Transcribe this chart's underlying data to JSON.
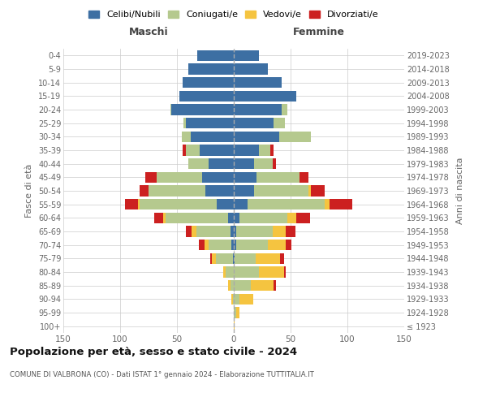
{
  "age_groups": [
    "100+",
    "95-99",
    "90-94",
    "85-89",
    "80-84",
    "75-79",
    "70-74",
    "65-69",
    "60-64",
    "55-59",
    "50-54",
    "45-49",
    "40-44",
    "35-39",
    "30-34",
    "25-29",
    "20-24",
    "15-19",
    "10-14",
    "5-9",
    "0-4"
  ],
  "birth_years": [
    "≤ 1923",
    "1924-1928",
    "1929-1933",
    "1934-1938",
    "1939-1943",
    "1944-1948",
    "1949-1953",
    "1954-1958",
    "1959-1963",
    "1964-1968",
    "1969-1973",
    "1974-1978",
    "1979-1983",
    "1984-1988",
    "1989-1993",
    "1994-1998",
    "1999-2003",
    "2004-2008",
    "2009-2013",
    "2014-2018",
    "2019-2023"
  ],
  "male": {
    "celibi": [
      0,
      0,
      0,
      0,
      0,
      1,
      2,
      3,
      5,
      15,
      25,
      28,
      22,
      30,
      38,
      42,
      55,
      48,
      45,
      40,
      32
    ],
    "coniugati": [
      0,
      0,
      1,
      3,
      7,
      15,
      20,
      30,
      55,
      68,
      50,
      40,
      18,
      12,
      8,
      2,
      1,
      0,
      0,
      0,
      0
    ],
    "vedovi": [
      0,
      0,
      1,
      2,
      2,
      3,
      4,
      4,
      2,
      1,
      0,
      0,
      0,
      0,
      0,
      0,
      0,
      0,
      0,
      0,
      0
    ],
    "divorziati": [
      0,
      0,
      0,
      0,
      0,
      2,
      5,
      5,
      8,
      12,
      8,
      10,
      0,
      3,
      0,
      0,
      0,
      0,
      0,
      0,
      0
    ]
  },
  "female": {
    "nubili": [
      0,
      0,
      0,
      0,
      0,
      1,
      2,
      2,
      5,
      12,
      18,
      20,
      18,
      22,
      40,
      35,
      42,
      55,
      42,
      30,
      22
    ],
    "coniugate": [
      0,
      2,
      5,
      15,
      22,
      18,
      28,
      32,
      42,
      68,
      48,
      38,
      16,
      10,
      28,
      10,
      5,
      0,
      0,
      0,
      0
    ],
    "vedove": [
      1,
      3,
      12,
      20,
      22,
      22,
      16,
      12,
      8,
      4,
      2,
      0,
      0,
      0,
      0,
      0,
      0,
      0,
      0,
      0,
      0
    ],
    "divorziate": [
      0,
      0,
      0,
      2,
      2,
      3,
      5,
      8,
      12,
      20,
      12,
      8,
      3,
      3,
      0,
      0,
      0,
      0,
      0,
      0,
      0
    ]
  },
  "colors": {
    "celibi": "#3d6fa3",
    "coniugati": "#b5c98e",
    "vedovi": "#f5c440",
    "divorziati": "#cc2020"
  },
  "legend_labels": [
    "Celibi/Nubili",
    "Coniugati/e",
    "Vedovi/e",
    "Divorziati/e"
  ],
  "xlim": 150,
  "title_main": "Popolazione per età, sesso e stato civile - 2024",
  "title_sub": "COMUNE DI VALBRONA (CO) - Dati ISTAT 1° gennaio 2024 - Elaborazione TUTTITALIA.IT",
  "ylabel_left": "Fasce di età",
  "ylabel_right": "Anni di nascita",
  "label_maschi": "Maschi",
  "label_femmine": "Femmine",
  "bg_color": "#ffffff",
  "grid_color": "#cccccc",
  "tick_color": "#666666"
}
